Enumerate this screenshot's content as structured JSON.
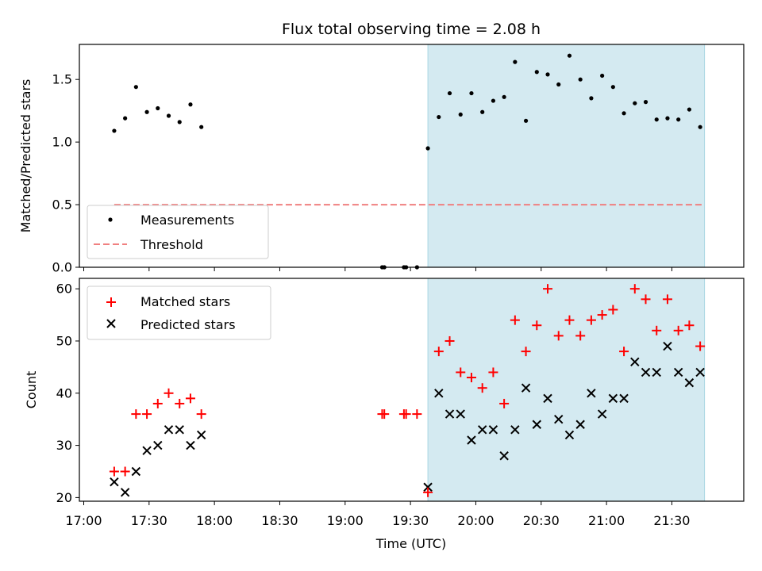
{
  "chart_data": [
    {
      "type": "scatter",
      "title": "Flux total observing time = 2.08 h",
      "ylabel": "Matched/Predicted stars",
      "ylim": [
        0,
        1.78
      ],
      "yticks": [
        "0.0",
        "0.5",
        "1.0",
        "1.5"
      ],
      "legend": {
        "placement": "lower-left",
        "entries": [
          "Measurements",
          "Threshold"
        ]
      },
      "threshold": {
        "name": "Threshold",
        "value": 0.5,
        "x_start": "17:14",
        "x_end": "21:44",
        "color": "#f08080"
      },
      "shaded_region": {
        "x_start": "19:38",
        "x_end": "21:45",
        "color": "#d4eaf1"
      },
      "series": [
        {
          "name": "Measurements",
          "color": "#000000",
          "x": [
            "17:14",
            "17:19",
            "17:24",
            "17:29",
            "17:34",
            "17:39",
            "17:44",
            "17:49",
            "17:54",
            "19:17",
            "19:18",
            "19:27",
            "19:28",
            "19:33",
            "19:38",
            "19:43",
            "19:48",
            "19:53",
            "19:58",
            "20:03",
            "20:08",
            "20:13",
            "20:18",
            "20:23",
            "20:28",
            "20:33",
            "20:38",
            "20:43",
            "20:48",
            "20:53",
            "20:58",
            "21:03",
            "21:08",
            "21:13",
            "21:18",
            "21:23",
            "21:28",
            "21:33",
            "21:38",
            "21:43"
          ],
          "y": [
            1.09,
            1.19,
            1.44,
            1.24,
            1.27,
            1.21,
            1.16,
            1.3,
            1.12,
            0,
            0,
            0,
            0,
            0,
            0.95,
            1.2,
            1.39,
            1.22,
            1.39,
            1.24,
            1.33,
            1.36,
            1.64,
            1.17,
            1.56,
            1.54,
            1.46,
            1.69,
            1.5,
            1.35,
            1.53,
            1.44,
            1.23,
            1.31,
            1.32,
            1.18,
            1.19,
            1.18,
            1.26,
            1.12
          ]
        }
      ]
    },
    {
      "type": "scatter",
      "xlabel": "Time (UTC)",
      "ylabel": "Count",
      "xlim": [
        "16:58",
        "22:03"
      ],
      "ylim": [
        19.3,
        62
      ],
      "xticks": [
        "17:00",
        "17:30",
        "18:00",
        "18:30",
        "19:00",
        "19:30",
        "20:00",
        "20:30",
        "21:00",
        "21:30"
      ],
      "yticks": [
        "20",
        "30",
        "40",
        "50",
        "60"
      ],
      "legend": {
        "placement": "upper-left",
        "entries": [
          "Matched stars",
          "Predicted stars"
        ]
      },
      "shaded_region": {
        "x_start": "19:38",
        "x_end": "21:45",
        "color": "#d4eaf1"
      },
      "series": [
        {
          "name": "Matched stars",
          "marker": "plus",
          "color": "#ff0000",
          "x": [
            "17:14",
            "17:19",
            "17:24",
            "17:29",
            "17:34",
            "17:39",
            "17:44",
            "17:49",
            "17:54",
            "19:17",
            "19:18",
            "19:27",
            "19:28",
            "19:33",
            "19:38",
            "19:43",
            "19:48",
            "19:53",
            "19:58",
            "20:03",
            "20:08",
            "20:13",
            "20:18",
            "20:23",
            "20:28",
            "20:33",
            "20:38",
            "20:43",
            "20:48",
            "20:53",
            "20:58",
            "21:03",
            "21:08",
            "21:13",
            "21:18",
            "21:23",
            "21:28",
            "21:33",
            "21:38",
            "21:43"
          ],
          "y": [
            25,
            25,
            36,
            36,
            38,
            40,
            38,
            39,
            36,
            36,
            36,
            36,
            36,
            36,
            21,
            48,
            50,
            44,
            43,
            41,
            44,
            38,
            54,
            48,
            53,
            60,
            51,
            54,
            51,
            54,
            55,
            56,
            48,
            60,
            58,
            52,
            58,
            52,
            53,
            49
          ]
        },
        {
          "name": "Predicted stars",
          "marker": "x",
          "color": "#000000",
          "x": [
            "17:14",
            "17:19",
            "17:24",
            "17:29",
            "17:34",
            "17:39",
            "17:44",
            "17:49",
            "17:54",
            "19:38",
            "19:43",
            "19:48",
            "19:53",
            "19:58",
            "20:03",
            "20:08",
            "20:13",
            "20:18",
            "20:23",
            "20:28",
            "20:33",
            "20:38",
            "20:43",
            "20:48",
            "20:53",
            "20:58",
            "21:03",
            "21:08",
            "21:13",
            "21:18",
            "21:23",
            "21:28",
            "21:33",
            "21:38",
            "21:43"
          ],
          "y": [
            23,
            21,
            25,
            29,
            30,
            33,
            33,
            30,
            32,
            22,
            40,
            36,
            36,
            31,
            33,
            33,
            28,
            33,
            41,
            34,
            39,
            35,
            32,
            34,
            40,
            36,
            39,
            39,
            46,
            44,
            44,
            49,
            44,
            42,
            44
          ]
        }
      ]
    }
  ]
}
